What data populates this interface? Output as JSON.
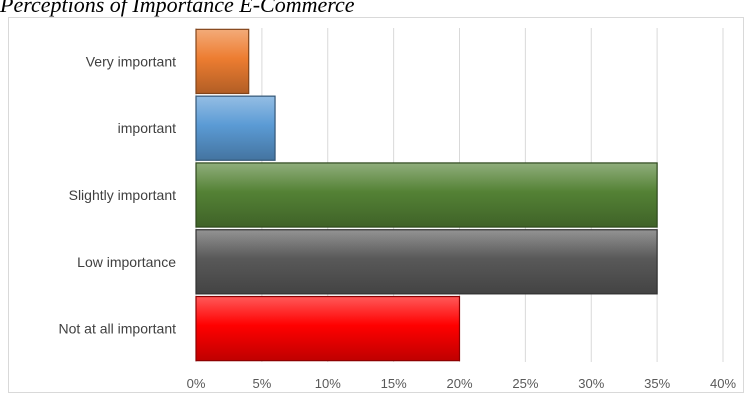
{
  "figure_title": "Perceptions of Importance E-Commerce",
  "chart_data": {
    "type": "bar",
    "orientation": "horizontal",
    "categories": [
      "Very important",
      "important",
      "Slightly important",
      "Low importance",
      "Not at all important"
    ],
    "values": [
      4,
      6,
      35,
      35,
      20
    ],
    "bar_colors": [
      "#ed7d31",
      "#5b9bd5",
      "#548235",
      "#595959",
      "#ff0000"
    ],
    "xlim": [
      0,
      40
    ],
    "xticks": [
      "0%",
      "5%",
      "10%",
      "15%",
      "20%",
      "25%",
      "30%",
      "35%",
      "40%"
    ],
    "grid": "vertical",
    "legend": "none"
  }
}
